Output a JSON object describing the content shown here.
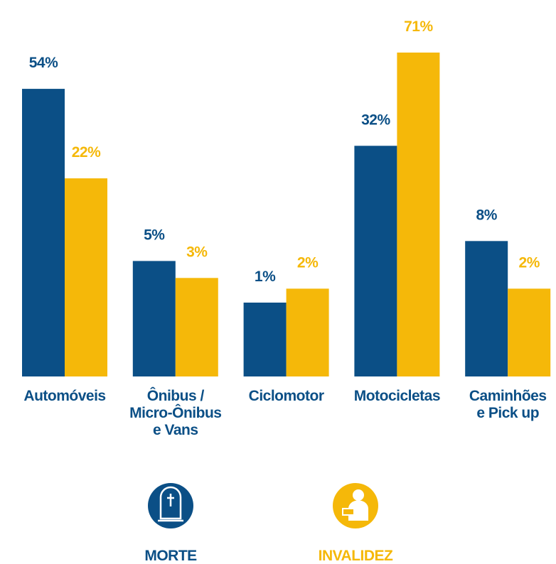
{
  "chart_data": {
    "type": "bar",
    "categories": [
      "Automóveis",
      "Ônibus /\nMicro-Ônibus\ne Vans",
      "Ciclomotor",
      "Motocicletas",
      "Caminhões\ne Pick up"
    ],
    "series": [
      {
        "name": "MORTE",
        "color": "#0b4f86",
        "values": [
          54,
          5,
          1,
          32,
          8
        ],
        "value_labels": [
          "54%",
          "5%",
          "1%",
          "32%",
          "8%"
        ]
      },
      {
        "name": "INVALIDEZ",
        "color": "#f5b809",
        "values": [
          22,
          3,
          2,
          71,
          2
        ],
        "value_labels": [
          "22%",
          "3%",
          "2%",
          "71%",
          "2%"
        ]
      }
    ]
  }
}
